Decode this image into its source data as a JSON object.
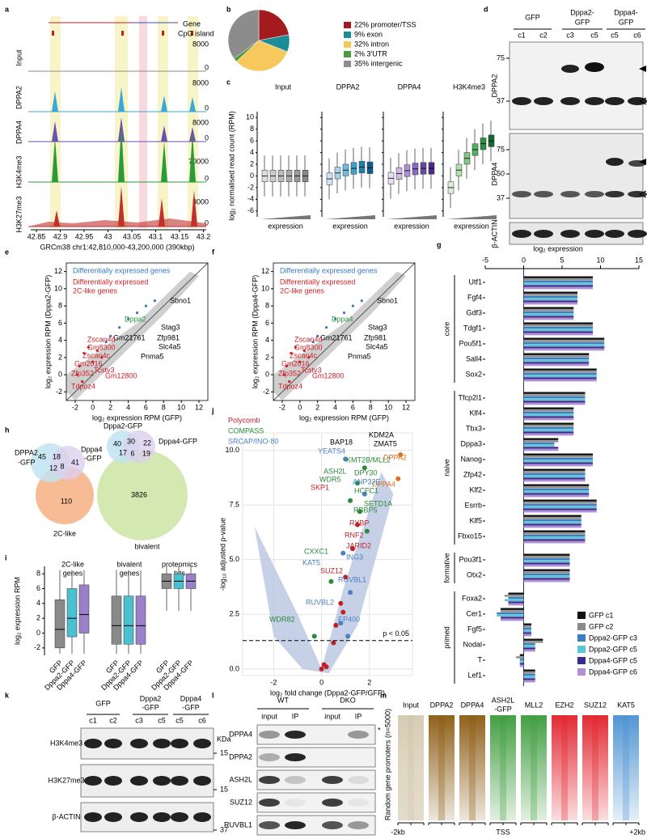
{
  "panels": {
    "a": {
      "letter": "a",
      "legend": [
        "Gene",
        "CpG island"
      ],
      "tracks": [
        "Input",
        "DPPA2",
        "DPPA4",
        "H3K4me3",
        "H3K27me3"
      ],
      "scales": [
        "8000",
        "0",
        "8000",
        "0",
        "8000",
        "0",
        "70000",
        "0",
        "8000",
        "0"
      ],
      "xticks": [
        "42.85",
        "42.9",
        "42.95",
        "43",
        "43.05",
        "43.1",
        "43.15",
        "43.2"
      ],
      "caption": "GRCm38 chr1:42,810,000-43,200,000 (390kbp)"
    },
    "b": {
      "letter": "b",
      "type": "pie",
      "values": [
        22,
        9,
        32,
        2,
        35
      ],
      "labels": [
        "22% promoter/TSS",
        "9% exon",
        "32% intron",
        "2% 3'UTR",
        "35% intergenic"
      ],
      "colors": [
        "#a31b1e",
        "#1c8c96",
        "#f7c95c",
        "#4d9a3f",
        "#8c8c8c"
      ]
    },
    "c": {
      "letter": "c",
      "titles": [
        "Input",
        "DPPA2",
        "DPPA4",
        "H3K4me3"
      ],
      "ylabel": "log₂ normalised read count (RPM)",
      "ylim": [
        -7,
        11
      ],
      "yticks": [
        -6,
        -4,
        -2,
        0,
        2,
        4,
        6,
        8,
        10
      ],
      "xlabel": "expression"
    },
    "d": {
      "letter": "d",
      "groups": [
        [
          "GFP"
        ],
        [
          "Dppa2-",
          "GFP"
        ],
        [
          "Dppa4-",
          "GFP"
        ]
      ],
      "clones": [
        "c1",
        "c2",
        "c3",
        "c5",
        "c5",
        "c6"
      ],
      "markers1": [
        "75",
        "37"
      ],
      "markers2": [
        "75",
        "50",
        "37"
      ],
      "rows": [
        "DPPA2",
        "DPPA4",
        "β-ACTIN"
      ]
    },
    "e": {
      "letter": "e",
      "legend": [
        "Differentially expressed genes",
        "Differentially expressed",
        "2C-like genes"
      ],
      "ticks": [
        -2,
        0,
        2,
        4,
        6,
        8,
        10,
        12
      ],
      "xlabel": "log₂ expression RPM (GFP)",
      "ylabel": "log₂ expression RPM (Dppa2-GFP)",
      "genes": [
        {
          "text": "Dppa2",
          "color": "#2a9a3a"
        },
        {
          "text": "Sbno1",
          "color": "#000000"
        },
        {
          "text": "Stag3",
          "color": "#000000"
        },
        {
          "text": "Gm21761",
          "color": "#000000"
        },
        {
          "text": "Zfp981",
          "color": "#000000"
        },
        {
          "text": "Slc4a5",
          "color": "#000000"
        },
        {
          "text": "Pnma5",
          "color": "#000000"
        },
        {
          "text": "Zscan4d",
          "color": "#d01f26"
        },
        {
          "text": "Gm8300",
          "color": "#d01f26"
        },
        {
          "text": "Zscan4c",
          "color": "#d01f26"
        },
        {
          "text": "Gm2016",
          "color": "#d01f26"
        },
        {
          "text": "Tcstv3",
          "color": "#d01f26"
        },
        {
          "text": "Zfp352",
          "color": "#d01f26"
        },
        {
          "text": "Gm12800",
          "color": "#d01f26"
        },
        {
          "text": "Tdpoz4",
          "color": "#d01f26"
        }
      ]
    },
    "f": {
      "letter": "f",
      "legend": [
        "Differentially expressed genes",
        "Differentially expressed",
        "2C-like genes"
      ],
      "ticks": [
        -2,
        0,
        2,
        4,
        6,
        8,
        10,
        12
      ],
      "xlabel": "log₂ expression RPM (GFP)",
      "ylabel": "log₂ expression RPM (Dppa4-GFP)",
      "genes": [
        {
          "text": "Dppa4",
          "color": "#2a9a3a"
        },
        {
          "text": "Sbno1",
          "color": "#000000"
        },
        {
          "text": "Stag3",
          "color": "#000000"
        },
        {
          "text": "Gm21761",
          "color": "#000000"
        },
        {
          "text": "Zfp981",
          "color": "#000000"
        },
        {
          "text": "Slc4a5",
          "color": "#000000"
        },
        {
          "text": "Pnma5",
          "color": "#000000"
        },
        {
          "text": "Zscan4d",
          "color": "#d01f26"
        },
        {
          "text": "Gm8300",
          "color": "#d01f26"
        },
        {
          "text": "Zscan4c",
          "color": "#d01f26"
        },
        {
          "text": "Gm2016",
          "color": "#d01f26"
        },
        {
          "text": "Tcstv3",
          "color": "#d01f26"
        },
        {
          "text": "Zfp352",
          "color": "#d01f26"
        },
        {
          "text": "Gm12800",
          "color": "#d01f26"
        },
        {
          "text": "Tdpoz4",
          "color": "#d01f26"
        }
      ]
    },
    "g": {
      "letter": "g",
      "type": "bar",
      "title": "log₂ expression",
      "xlim": [
        -5,
        15
      ],
      "xticks": [
        -5,
        0,
        5,
        10,
        15
      ],
      "groups": [
        {
          "name": "core",
          "genes": [
            "Utf1",
            "Fgf4",
            "Gdf3",
            "Tdgf1",
            "Pou5f1",
            "Sall4",
            "Sox2"
          ]
        },
        {
          "name": "naive",
          "genes": [
            "Tfcp2l1",
            "Klf4",
            "Tbx3",
            "Dppa3",
            "Nanog",
            "Zfp42",
            "Klf2",
            "Esrrb",
            "Klf5",
            "Fbxo15"
          ]
        },
        {
          "name": "formative",
          "genes": [
            "Pou3f1",
            "Otx2"
          ]
        },
        {
          "name": "primed",
          "genes": [
            "Foxa2",
            "Cer1",
            "Fgf5",
            "Nodal",
            "T",
            "Lef1"
          ]
        }
      ],
      "series": [
        {
          "name": "GFP c1",
          "color": "#111111",
          "values": [
            9,
            7,
            6.5,
            9,
            10.5,
            8.5,
            9.5,
            8,
            6.5,
            6.5,
            4.5,
            9,
            8,
            8.5,
            9.5,
            7.5,
            8,
            6,
            6,
            -2,
            -3,
            1,
            2.5,
            -0.5,
            1.5
          ]
        },
        {
          "name": "GFP c2",
          "color": "#8a8a8a",
          "values": [
            9,
            7,
            6.5,
            9,
            10.5,
            8.5,
            9.5,
            8,
            6.5,
            6.5,
            4.5,
            9,
            8,
            8.5,
            9.5,
            7.5,
            8,
            6,
            6,
            -2.5,
            -3,
            1,
            2.5,
            -1,
            1.5
          ]
        },
        {
          "name": "Dppa2-GFP c3",
          "color": "#3a7fc4",
          "values": [
            9,
            7,
            6.5,
            9,
            10.5,
            8.5,
            9.5,
            8,
            6.5,
            6.5,
            4,
            9,
            8,
            8.5,
            9.5,
            7.5,
            8,
            6,
            6,
            -2,
            -3.5,
            1,
            1.5,
            -0.5,
            1.5
          ]
        },
        {
          "name": "Dppa2-GFP c5",
          "color": "#5cc6d6",
          "values": [
            9,
            7,
            6.5,
            9,
            10.5,
            8.5,
            9.5,
            8,
            6.5,
            6.5,
            4,
            9,
            8,
            8.5,
            9.5,
            7.5,
            8,
            6,
            6,
            -2.5,
            -3.5,
            1,
            1.5,
            -0.5,
            1.5
          ]
        },
        {
          "name": "Dppa4-GFP c5",
          "color": "#3b2a8c",
          "values": [
            9,
            7,
            6.5,
            9,
            10.5,
            8.5,
            9.5,
            8,
            6.5,
            6.5,
            4.5,
            9,
            8,
            8.5,
            9.5,
            7.5,
            8,
            6,
            6,
            -2,
            -3,
            1,
            1.5,
            -0.5,
            1.5
          ]
        },
        {
          "name": "Dppa4-GFP c6",
          "color": "#b08fd6",
          "values": [
            9,
            7,
            6.5,
            9,
            10.5,
            8.5,
            9.5,
            8,
            6.5,
            6.5,
            4.5,
            9,
            8,
            8.5,
            9.5,
            7.5,
            8,
            6,
            6,
            -2,
            -3,
            1,
            1.5,
            -0.5,
            1.5
          ]
        }
      ]
    },
    "h": {
      "letter": "h",
      "left": {
        "labels": [
          "DPPA2",
          "-GFP",
          "Dppa4",
          "-GFP",
          "2C-like"
        ],
        "counts": [
          "45",
          "18",
          "41",
          "12",
          "8",
          "110"
        ]
      },
      "right": {
        "labels": [
          "Dppa2-GFP",
          "Dppa4-GFP",
          "bivalent"
        ],
        "counts": [
          "40",
          "30",
          "22",
          "17",
          "6",
          "19",
          "3826"
        ]
      }
    },
    "i": {
      "letter": "i",
      "groups": [
        [
          "2C-like",
          "genes"
        ],
        [
          "bivalent",
          "genes"
        ],
        [
          "proteomics",
          "hits"
        ]
      ],
      "ylabel": "log₂ expression RPM",
      "ylim": [
        -3,
        9
      ],
      "yticks": [
        -2,
        0,
        2,
        4,
        6,
        8
      ],
      "xlabels": [
        "GFP",
        "Dppa2-GFP",
        "Dppa4-GFP"
      ]
    },
    "j": {
      "letter": "j",
      "legend": [
        {
          "text": "Polycomb",
          "color": "#c0202a"
        },
        {
          "text": "COMPASS",
          "color": "#2a8a3a"
        },
        {
          "text": "SRCAP/INO-80",
          "color": "#4a7fc4"
        }
      ],
      "xlabel": "log₂ fold change (Dppa2-GFP/GFP)",
      "ylabel": "-log₁₀ adjusted p-value",
      "threshold": "p < 0.05",
      "xlim": [
        -3.3,
        3.8
      ],
      "xticks": [
        -2,
        0,
        2
      ],
      "ylim": [
        -0.3,
        10.8
      ],
      "yticks": [
        {
          "value": 0,
          "label": "0.0"
        },
        {
          "value": 2.5,
          "label": "2.5"
        },
        {
          "value": 5,
          "label": "5.0"
        },
        {
          "value": 7.5,
          "label": "7.5"
        },
        {
          "value": 10,
          "label": "10.0"
        }
      ],
      "proteins": [
        {
          "text": "BAP18",
          "color": "#000000"
        },
        {
          "text": "KDM2A",
          "color": "#000000"
        },
        {
          "text": "ZMAT5",
          "color": "#000000"
        },
        {
          "text": "YEATS4",
          "color": "#4a7fc4"
        },
        {
          "text": "DPPA2",
          "color": "#e07020"
        },
        {
          "text": "KMT2B/MLL2",
          "color": "#2a8a3a"
        },
        {
          "text": "ASH2L",
          "color": "#2a8a3a"
        },
        {
          "text": "WDR5",
          "color": "#2a8a3a"
        },
        {
          "text": "DPY30",
          "color": "#2a8a3a"
        },
        {
          "text": "DPPA4",
          "color": "#e07020"
        },
        {
          "text": "SKP1",
          "color": "#c0202a"
        },
        {
          "text": "ANP32E",
          "color": "#4a7fc4"
        },
        {
          "text": "HCFC1",
          "color": "#2a8a3a"
        },
        {
          "text": "SETD1A",
          "color": "#2a8a3a"
        },
        {
          "text": "RBBP5",
          "color": "#2a8a3a"
        },
        {
          "text": "RYBP",
          "color": "#c0202a"
        },
        {
          "text": "RNF2",
          "color": "#c0202a"
        },
        {
          "text": "JARID2",
          "color": "#c0202a"
        },
        {
          "text": "CXXC1",
          "color": "#2a8a3a"
        },
        {
          "text": "ING3",
          "color": "#4a7fc4"
        },
        {
          "text": "KAT5",
          "color": "#4a7fc4"
        },
        {
          "text": "SUZ12",
          "color": "#c0202a"
        },
        {
          "text": "RUVBL1",
          "color": "#4a7fc4"
        },
        {
          "text": "RUVBL2",
          "color": "#4a7fc4"
        },
        {
          "text": "EP400",
          "color": "#4a7fc4"
        },
        {
          "text": "WDR82",
          "color": "#2a8a3a"
        }
      ]
    },
    "k": {
      "letter": "k",
      "groups": [
        [
          "GFP"
        ],
        [
          "Dppa2",
          "-GFP"
        ],
        [
          "Dppa4",
          "-GFP"
        ]
      ],
      "clones": [
        "c1",
        "c2",
        "c3",
        "c5",
        "c5",
        "c6"
      ],
      "rows": [
        "H3K4me3",
        "H3K27me3",
        "β-ACTIN"
      ],
      "unit": "KDa",
      "markers": [
        "15",
        "15",
        "37"
      ]
    },
    "l": {
      "letter": "l",
      "groups": [
        "WT",
        "DKO"
      ],
      "lanes": [
        "input",
        "IP",
        "input",
        "IP"
      ],
      "rows": [
        "DPPA4",
        "DPPA2",
        "ASH2L",
        "SUZ12",
        "RUVBL1"
      ],
      "star": "*"
    },
    "m": {
      "letter": "m",
      "columns": [
        [
          "Input"
        ],
        [
          "DPPA2"
        ],
        [
          "DPPA4"
        ],
        [
          "ASH2L",
          "-GFP"
        ],
        [
          "MLL2"
        ],
        [
          "EZH2"
        ],
        [
          "SUZ12"
        ],
        [
          "KAT5"
        ]
      ],
      "colors": [
        "#b09a6a",
        "#8a5a10",
        "#8a5a10",
        "#3a9a3a",
        "#3a9a3a",
        "#e0202a",
        "#e0202a",
        "#4a90d0"
      ],
      "ylabel": "Random gene promoters (n=5000)",
      "xlabels": [
        "-2kb",
        "TSS",
        "+2kb"
      ]
    }
  }
}
